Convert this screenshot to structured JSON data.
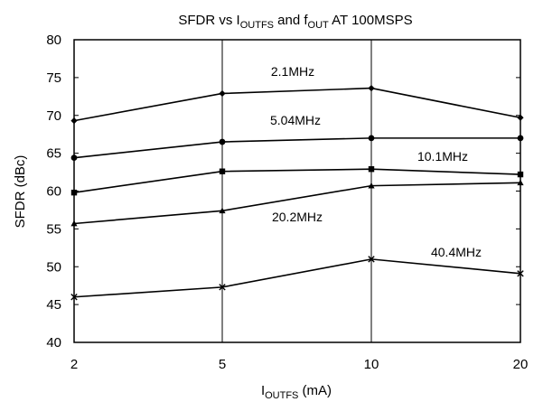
{
  "chart_data": {
    "type": "line",
    "title": {
      "parts": [
        {
          "text": "SFDR vs I",
          "sub": false
        },
        {
          "text": "OUTFS",
          "sub": true
        },
        {
          "text": " and f",
          "sub": false
        },
        {
          "text": "OUT",
          "sub": true
        },
        {
          "text": " AT 100MSPS",
          "sub": false
        }
      ]
    },
    "xlabel": {
      "parts": [
        {
          "text": "I",
          "sub": false
        },
        {
          "text": "OUTFS",
          "sub": true
        },
        {
          "text": " (mA)",
          "sub": false
        }
      ]
    },
    "ylabel": "SFDR (dBc)",
    "x_categories": [
      "2",
      "5",
      "10",
      "20"
    ],
    "ylim": [
      40,
      80
    ],
    "yticks": [
      40,
      45,
      50,
      55,
      60,
      65,
      70,
      75,
      80
    ],
    "grid": "vertical lines at x categories",
    "series": [
      {
        "name": "2.1MHz",
        "marker": "diamond",
        "values": [
          69.3,
          72.9,
          73.6,
          69.7
        ]
      },
      {
        "name": "5.04MHz",
        "marker": "circle",
        "values": [
          64.4,
          66.5,
          67.0,
          67.0
        ]
      },
      {
        "name": "10.1MHz",
        "marker": "square",
        "values": [
          59.8,
          62.6,
          62.9,
          62.2
        ]
      },
      {
        "name": "20.2MHz",
        "marker": "triangle",
        "values": [
          55.7,
          57.4,
          60.7,
          61.1
        ]
      },
      {
        "name": "40.4MHz",
        "marker": "cross",
        "values": [
          46.0,
          47.3,
          51.0,
          49.1
        ]
      }
    ]
  }
}
